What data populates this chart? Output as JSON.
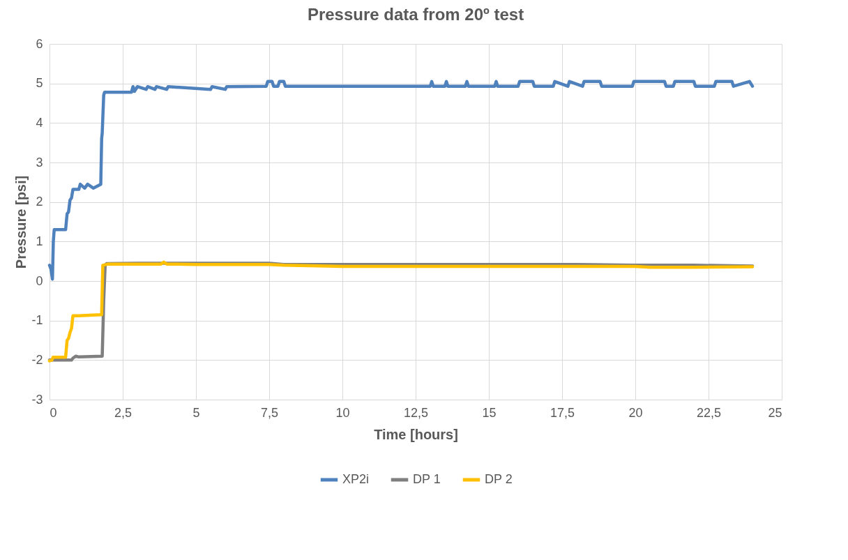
{
  "chart_data": {
    "type": "line",
    "title": "Pressure data from 20º test",
    "xlabel": "Time [hours]",
    "ylabel": "Pressure [psi]",
    "xlim": [
      0,
      25
    ],
    "xticks": [
      0,
      {
        "value": 2.5,
        "label": "2,5"
      },
      5,
      {
        "value": 7.5,
        "label": "7,5"
      },
      10,
      {
        "value": 12.5,
        "label": "12,5"
      },
      15,
      {
        "value": 17.5,
        "label": "17,5"
      },
      20,
      {
        "value": 22.5,
        "label": "22,5"
      },
      25
    ],
    "ylim": [
      -3,
      6
    ],
    "yticks": [
      -3,
      -2,
      -1,
      0,
      1,
      2,
      3,
      4,
      5,
      6
    ],
    "grid": true,
    "legend": "bottom",
    "line_style": "solid",
    "marker": "none",
    "series": [
      {
        "name": "XP2i",
        "color": "#4f81bd",
        "x": [
          0,
          0.05,
          0.1,
          0.13,
          0.16,
          0.55,
          0.6,
          0.65,
          0.7,
          0.75,
          0.8,
          1.0,
          1.05,
          1.2,
          1.3,
          1.5,
          1.75,
          1.78,
          1.8,
          1.85,
          1.88,
          1.9,
          2.8,
          2.85,
          2.9,
          3.0,
          3.3,
          3.35,
          3.6,
          3.65,
          4.0,
          4.05,
          5.5,
          5.55,
          6.0,
          6.05,
          7.4,
          7.45,
          7.6,
          7.65,
          7.8,
          7.85,
          8.0,
          8.05,
          13.0,
          13.05,
          13.1,
          13.5,
          13.55,
          13.6,
          14.2,
          14.25,
          14.3,
          15.2,
          15.25,
          15.3,
          16.0,
          16.05,
          16.5,
          16.55,
          17.2,
          17.25,
          17.7,
          17.75,
          18.2,
          18.25,
          18.8,
          18.85,
          19.9,
          19.95,
          21.0,
          21.05,
          21.3,
          21.35,
          22.0,
          22.05,
          22.7,
          22.75,
          23.3,
          23.35,
          23.9,
          24.0
        ],
        "values": [
          0.4,
          0.3,
          0.05,
          1.0,
          1.3,
          1.3,
          1.7,
          1.75,
          2.05,
          2.1,
          2.32,
          2.32,
          2.45,
          2.35,
          2.45,
          2.35,
          2.45,
          3.6,
          3.75,
          4.7,
          4.78,
          4.78,
          4.78,
          4.92,
          4.8,
          4.92,
          4.85,
          4.92,
          4.85,
          4.92,
          4.85,
          4.92,
          4.85,
          4.92,
          4.85,
          4.92,
          4.93,
          5.05,
          5.05,
          4.93,
          4.93,
          5.05,
          5.05,
          4.93,
          4.93,
          5.05,
          4.93,
          4.93,
          5.05,
          4.93,
          4.93,
          5.05,
          4.93,
          4.93,
          5.05,
          4.93,
          4.93,
          5.05,
          5.05,
          4.93,
          4.93,
          5.05,
          4.93,
          5.05,
          4.93,
          5.05,
          5.05,
          4.93,
          4.93,
          5.05,
          5.05,
          4.93,
          4.93,
          5.05,
          5.05,
          4.93,
          4.93,
          5.05,
          5.05,
          4.93,
          5.05,
          4.93
        ]
      },
      {
        "name": "DP 1",
        "color": "#7f7f7f",
        "x": [
          0,
          0.5,
          0.75,
          0.8,
          0.9,
          1.0,
          1.8,
          1.85,
          1.9,
          1.95,
          3.0,
          5.0,
          7.5,
          8.0,
          10.0,
          15.0,
          18.0,
          20.0,
          22.0,
          24.0
        ],
        "values": [
          -2.0,
          -2.0,
          -2.0,
          -1.95,
          -1.9,
          -1.92,
          -1.9,
          -0.5,
          0.4,
          0.44,
          0.45,
          0.45,
          0.45,
          0.42,
          0.42,
          0.42,
          0.42,
          0.4,
          0.4,
          0.38
        ]
      },
      {
        "name": "DP 2",
        "color": "#ffc000",
        "x": [
          0,
          0.08,
          0.12,
          0.55,
          0.6,
          0.65,
          0.7,
          0.75,
          0.8,
          1.0,
          1.75,
          1.78,
          1.82,
          2.0,
          3.8,
          3.9,
          4.0,
          5.0,
          7.5,
          8.0,
          10.0,
          15.0,
          20.0,
          20.5,
          22.0,
          24.0
        ],
        "values": [
          -2.02,
          -2.0,
          -1.93,
          -1.93,
          -1.5,
          -1.45,
          -1.3,
          -1.2,
          -0.88,
          -0.88,
          -0.85,
          -0.85,
          0.4,
          0.43,
          0.43,
          0.48,
          0.43,
          0.42,
          0.42,
          0.4,
          0.37,
          0.37,
          0.37,
          0.35,
          0.35,
          0.36
        ]
      }
    ]
  }
}
